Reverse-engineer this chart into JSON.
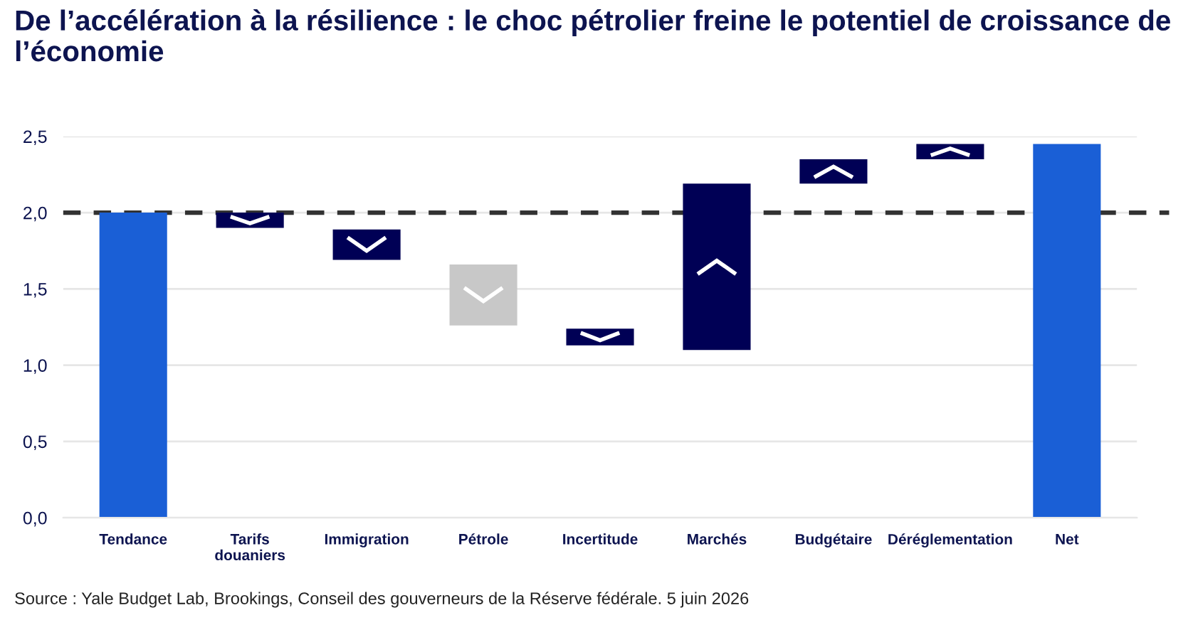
{
  "chart_data": {
    "type": "bar",
    "title": "De l’accélération à la résilience : le choc pétrolier freine le potentiel de croissance de l’économie",
    "categories": [
      "Tendance",
      "Tarifs\ndouaniers",
      "Immigration",
      "Pétrole",
      "Incertitude",
      "Marchés",
      "Budgétaire",
      "Déréglementation",
      "Net"
    ],
    "values": [
      2.0,
      -0.1,
      -0.2,
      -0.4,
      -0.11,
      1.09,
      0.16,
      0.1,
      2.45
    ],
    "base": [
      0,
      2.0,
      1.89,
      1.66,
      1.24,
      1.1,
      2.19,
      2.35,
      0
    ],
    "colors": [
      "#1a5fd6",
      "#000055",
      "#000055",
      "#c8c8c8",
      "#000055",
      "#000055",
      "#000055",
      "#000055",
      "#1a5fd6"
    ],
    "ylim": [
      0,
      2.5
    ],
    "yticks": [
      {
        "value": 0,
        "label": "0,0"
      },
      {
        "value": 0.5,
        "label": "0,5"
      },
      {
        "value": 1.0,
        "label": "1,0"
      },
      {
        "value": 1.5,
        "label": "1,5"
      },
      {
        "value": 2.0,
        "label": "2,0"
      },
      {
        "value": 2.5,
        "label": "2,5"
      }
    ],
    "grid": "y",
    "ref_lines": [
      {
        "axis": "y",
        "value": 2.0,
        "color": "#333333",
        "line_style": "dashed"
      }
    ],
    "annotations": [
      "Source : Yale Budget Lab, Brookings, Conseil des gouverneurs de la Réserve fédérale. 5 juin 2026"
    ]
  }
}
